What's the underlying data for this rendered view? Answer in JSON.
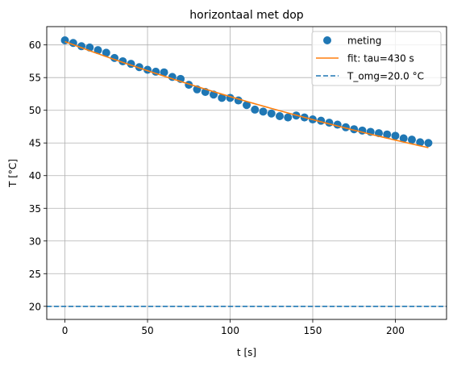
{
  "chart_data": {
    "type": "scatter",
    "title": "horizontaal met dop",
    "xlabel": "t [s]",
    "ylabel": "T [°C]",
    "xlim": [
      -11,
      231
    ],
    "ylim": [
      18.0,
      62.8
    ],
    "grid": true,
    "legend_position": "top-right",
    "x_ticks": [
      0,
      50,
      100,
      150,
      200
    ],
    "y_ticks": [
      20,
      25,
      30,
      35,
      40,
      45,
      50,
      55,
      60
    ],
    "series": [
      {
        "name": "meting",
        "kind": "scatter",
        "color": "#1f77b4",
        "x": [
          0,
          5,
          10,
          15,
          20,
          25,
          30,
          35,
          40,
          45,
          50,
          55,
          60,
          65,
          70,
          75,
          80,
          85,
          90,
          95,
          100,
          105,
          110,
          115,
          120,
          125,
          130,
          135,
          140,
          145,
          150,
          155,
          160,
          165,
          170,
          175,
          180,
          185,
          190,
          195,
          200,
          205,
          210,
          215,
          220
        ],
        "y": [
          60.7,
          60.3,
          59.8,
          59.6,
          59.2,
          58.8,
          58.0,
          57.5,
          57.1,
          56.6,
          56.2,
          55.9,
          55.8,
          55.1,
          54.8,
          53.9,
          53.2,
          52.8,
          52.4,
          51.9,
          51.9,
          51.5,
          50.8,
          50.1,
          49.8,
          49.5,
          49.1,
          48.9,
          49.2,
          48.9,
          48.6,
          48.4,
          48.1,
          47.8,
          47.4,
          47.1,
          46.9,
          46.7,
          46.5,
          46.3,
          46.1,
          45.7,
          45.5,
          45.1,
          45.0
        ]
      },
      {
        "name": "fit: tau=430 s",
        "kind": "line",
        "color": "#ff7f0e",
        "tau": 430,
        "T0": 60.5,
        "T_env": 20.0,
        "x_range": [
          0,
          220
        ]
      },
      {
        "name": "T_omg=20.0 °C",
        "kind": "hline",
        "color": "#1f77b4",
        "y": 20.0
      }
    ]
  }
}
